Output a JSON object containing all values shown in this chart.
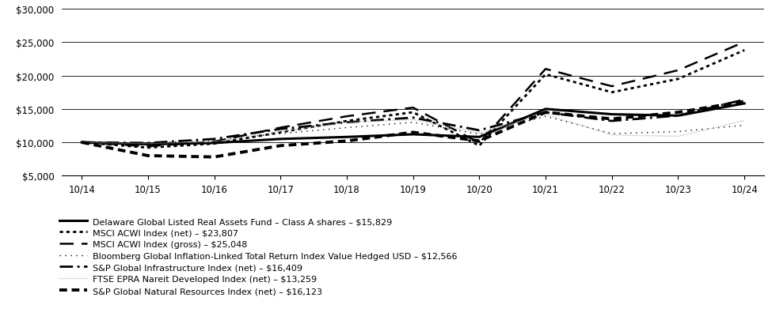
{
  "x_labels": [
    "10/14",
    "10/15",
    "10/16",
    "10/17",
    "10/18",
    "10/19",
    "10/20",
    "10/21",
    "10/22",
    "10/23",
    "10/24"
  ],
  "x_values": [
    0,
    1,
    2,
    3,
    4,
    5,
    6,
    7,
    8,
    9,
    10
  ],
  "ylim": [
    5000,
    30000
  ],
  "yticks": [
    5000,
    10000,
    15000,
    20000,
    25000,
    30000
  ],
  "series": [
    {
      "label": "Delaware Global Listed Real Assets Fund – Class A shares – $15,829",
      "values": [
        10000,
        9700,
        9900,
        10500,
        10800,
        11200,
        10800,
        15000,
        14200,
        14000,
        15829
      ],
      "color": "#000000",
      "linewidth": 2.2,
      "dashes": null
    },
    {
      "label": "MSCI ACWI Index (net) – $23,807",
      "values": [
        10000,
        9200,
        9800,
        11500,
        13200,
        14500,
        9500,
        20200,
        17500,
        19500,
        23807
      ],
      "color": "#000000",
      "linewidth": 2.0,
      "dashes": [
        1.5,
        1.5
      ]
    },
    {
      "label": "MSCI ACWI Index (gross) – $25,048",
      "values": [
        10000,
        9400,
        10100,
        12200,
        13900,
        15200,
        9900,
        21000,
        18400,
        20800,
        25048
      ],
      "color": "#000000",
      "linewidth": 1.8,
      "dashes": [
        7,
        4
      ]
    },
    {
      "label": "Bloomberg Global Inflation-Linked Total Return Index Value Hedged USD – $12,566",
      "values": [
        10000,
        9900,
        10300,
        11300,
        12200,
        13000,
        11200,
        13900,
        11300,
        11600,
        12566
      ],
      "color": "#000000",
      "linewidth": 1.0,
      "dashes": [
        1,
        4
      ]
    },
    {
      "label": "S&P Global Infrastructure Index (net) – $16,409",
      "values": [
        10000,
        9900,
        10500,
        12000,
        13000,
        13700,
        11800,
        14500,
        13200,
        14000,
        16409
      ],
      "color": "#000000",
      "linewidth": 2.0,
      "dashes": [
        6,
        2,
        1,
        2
      ]
    },
    {
      "label": "FTSE EPRA Nareit Developed Index (net) – $13,259",
      "values": [
        10000,
        9800,
        10100,
        11600,
        13000,
        13400,
        11400,
        14200,
        11100,
        10900,
        13259
      ],
      "color": "#aaaaaa",
      "linewidth": 1.0,
      "dashes": [
        0.5,
        0.8
      ]
    },
    {
      "label": "S&P Global Natural Resources Index (net) – $16,123",
      "values": [
        10000,
        8000,
        7800,
        9500,
        10200,
        11500,
        10200,
        14500,
        13500,
        14500,
        16123
      ],
      "color": "#000000",
      "linewidth": 2.8,
      "dashes": [
        2.5,
        1.5
      ]
    }
  ],
  "background_color": "#ffffff",
  "text_color": "#000000",
  "grid_color": "#000000",
  "font_size": 8.5,
  "legend_font_size": 8.0
}
